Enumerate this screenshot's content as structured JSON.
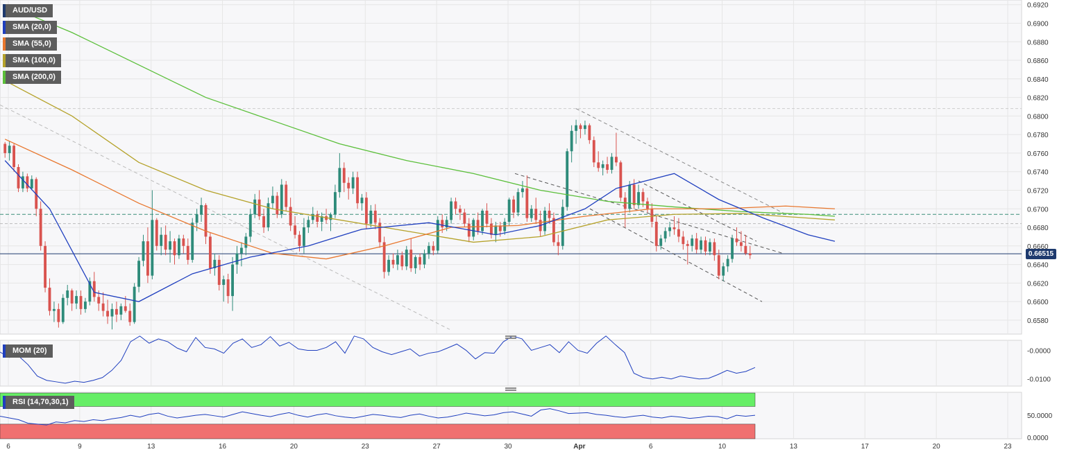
{
  "symbol": "AUD/USD",
  "indicators": [
    {
      "label": "SMA (20,0)",
      "color": "#1f3fbf"
    },
    {
      "label": "SMA (55,0)",
      "color": "#e8772e"
    },
    {
      "label": "SMA (100,0)",
      "color": "#b5a22a"
    },
    {
      "label": "SMA (200,0)",
      "color": "#5bbf3a"
    }
  ],
  "current_price": "0.66515",
  "mom_label": "MOM (20)",
  "rsi_label": "RSI (14,70,30,1)",
  "colors": {
    "up": "#2e8b7a",
    "down": "#d9534f",
    "accent": "#1e3a6e",
    "rsi_high": "#66ee66",
    "rsi_low": "#f07070"
  },
  "chart_data": {
    "type": "candlestick",
    "y_axis": {
      "min": 0.6565,
      "max": 0.6925,
      "ticks": [
        "0.6920",
        "0.6900",
        "0.6880",
        "0.6860",
        "0.6840",
        "0.6820",
        "0.6800",
        "0.6780",
        "0.6760",
        "0.6740",
        "0.6720",
        "0.6700",
        "0.6680",
        "0.6660",
        "0.6640",
        "0.6620",
        "0.6600",
        "0.6580"
      ]
    },
    "x_axis": {
      "labels": [
        "6",
        "9",
        "13",
        "16",
        "20",
        "23",
        "27",
        "30",
        "Apr",
        "6",
        "10",
        "13",
        "17",
        "20",
        "23"
      ]
    },
    "horizontal_levels": [
      0.6694,
      0.6684,
      0.6808
    ],
    "current_price": 0.66515,
    "candles": [
      [
        0.677,
        0.6772,
        0.6755,
        0.676
      ],
      [
        0.676,
        0.6773,
        0.6752,
        0.6768
      ],
      [
        0.6768,
        0.677,
        0.674,
        0.6745
      ],
      [
        0.6745,
        0.6748,
        0.6718,
        0.6722
      ],
      [
        0.6722,
        0.674,
        0.6718,
        0.6735
      ],
      [
        0.6735,
        0.6738,
        0.6718,
        0.6722
      ],
      [
        0.6722,
        0.6736,
        0.672,
        0.6732
      ],
      [
        0.6732,
        0.6734,
        0.6692,
        0.67
      ],
      [
        0.67,
        0.6708,
        0.6655,
        0.666
      ],
      [
        0.666,
        0.6665,
        0.661,
        0.6615
      ],
      [
        0.6615,
        0.6625,
        0.6585,
        0.659
      ],
      [
        0.659,
        0.66,
        0.6578,
        0.6592
      ],
      [
        0.6592,
        0.6598,
        0.6572,
        0.6578
      ],
      [
        0.6578,
        0.6608,
        0.6576,
        0.6604
      ],
      [
        0.6604,
        0.6618,
        0.6596,
        0.6612
      ],
      [
        0.6612,
        0.6614,
        0.659,
        0.6598
      ],
      [
        0.6598,
        0.6612,
        0.6592,
        0.6606
      ],
      [
        0.6606,
        0.6612,
        0.6586,
        0.6592
      ],
      [
        0.6592,
        0.6604,
        0.6588,
        0.66
      ],
      [
        0.66,
        0.6626,
        0.6596,
        0.6622
      ],
      [
        0.6622,
        0.6632,
        0.66,
        0.6605
      ],
      [
        0.6605,
        0.6612,
        0.659,
        0.6598
      ],
      [
        0.6598,
        0.661,
        0.6584,
        0.659
      ],
      [
        0.659,
        0.6602,
        0.6576,
        0.6584
      ],
      [
        0.6584,
        0.6598,
        0.657,
        0.6592
      ],
      [
        0.6592,
        0.66,
        0.6578,
        0.6586
      ],
      [
        0.6586,
        0.6598,
        0.658,
        0.6595
      ],
      [
        0.6595,
        0.6606,
        0.6588,
        0.659
      ],
      [
        0.659,
        0.6598,
        0.6574,
        0.6578
      ],
      [
        0.6578,
        0.662,
        0.6576,
        0.6616
      ],
      [
        0.6616,
        0.6648,
        0.661,
        0.6644
      ],
      [
        0.6644,
        0.6672,
        0.6638,
        0.6665
      ],
      [
        0.6665,
        0.668,
        0.662,
        0.6628
      ],
      [
        0.6628,
        0.672,
        0.6624,
        0.6688
      ],
      [
        0.6688,
        0.669,
        0.6655,
        0.666
      ],
      [
        0.666,
        0.668,
        0.665,
        0.6672
      ],
      [
        0.6672,
        0.6682,
        0.665,
        0.6656
      ],
      [
        0.6656,
        0.6676,
        0.6642,
        0.6665
      ],
      [
        0.6665,
        0.6668,
        0.664,
        0.665
      ],
      [
        0.665,
        0.6672,
        0.6646,
        0.6668
      ],
      [
        0.6668,
        0.6672,
        0.6652,
        0.666
      ],
      [
        0.666,
        0.6668,
        0.664,
        0.6645
      ],
      [
        0.6645,
        0.669,
        0.6642,
        0.6685
      ],
      [
        0.6685,
        0.67,
        0.6676,
        0.6694
      ],
      [
        0.6694,
        0.6712,
        0.6686,
        0.6704
      ],
      [
        0.6704,
        0.6706,
        0.6662,
        0.667
      ],
      [
        0.667,
        0.6674,
        0.663,
        0.6636
      ],
      [
        0.6636,
        0.6652,
        0.6628,
        0.6645
      ],
      [
        0.6645,
        0.665,
        0.6612,
        0.6618
      ],
      [
        0.6618,
        0.6628,
        0.66,
        0.6624
      ],
      [
        0.6624,
        0.663,
        0.6598,
        0.6606
      ],
      [
        0.6606,
        0.6648,
        0.659,
        0.664
      ],
      [
        0.664,
        0.666,
        0.663,
        0.6652
      ],
      [
        0.6652,
        0.6664,
        0.6638,
        0.6658
      ],
      [
        0.6658,
        0.6674,
        0.665,
        0.667
      ],
      [
        0.667,
        0.67,
        0.6664,
        0.6694
      ],
      [
        0.6694,
        0.6716,
        0.669,
        0.671
      ],
      [
        0.671,
        0.672,
        0.6688,
        0.6692
      ],
      [
        0.6692,
        0.67,
        0.6674,
        0.668
      ],
      [
        0.668,
        0.6712,
        0.6676,
        0.6706
      ],
      [
        0.6706,
        0.6724,
        0.67,
        0.6714
      ],
      [
        0.6714,
        0.6718,
        0.669,
        0.6694
      ],
      [
        0.6694,
        0.6732,
        0.669,
        0.6726
      ],
      [
        0.6726,
        0.673,
        0.6698,
        0.6702
      ],
      [
        0.6702,
        0.6712,
        0.6676,
        0.6682
      ],
      [
        0.6682,
        0.6692,
        0.6668,
        0.6672
      ],
      [
        0.6672,
        0.6676,
        0.6654,
        0.666
      ],
      [
        0.666,
        0.669,
        0.6652,
        0.668
      ],
      [
        0.668,
        0.6692,
        0.6674,
        0.6688
      ],
      [
        0.6688,
        0.6702,
        0.6684,
        0.6694
      ],
      [
        0.6694,
        0.6698,
        0.668,
        0.6686
      ],
      [
        0.6686,
        0.6696,
        0.6676,
        0.6692
      ],
      [
        0.6692,
        0.67,
        0.6684,
        0.6688
      ],
      [
        0.6688,
        0.6696,
        0.6676,
        0.6694
      ],
      [
        0.6694,
        0.6726,
        0.669,
        0.6718
      ],
      [
        0.6718,
        0.676,
        0.6712,
        0.6744
      ],
      [
        0.6744,
        0.675,
        0.6718,
        0.6728
      ],
      [
        0.6728,
        0.6734,
        0.671,
        0.6722
      ],
      [
        0.6722,
        0.674,
        0.6716,
        0.6734
      ],
      [
        0.6734,
        0.674,
        0.67,
        0.6706
      ],
      [
        0.6706,
        0.6716,
        0.6698,
        0.6712
      ],
      [
        0.6712,
        0.6718,
        0.6678,
        0.6684
      ],
      [
        0.6684,
        0.6704,
        0.668,
        0.6698
      ],
      [
        0.6698,
        0.6705,
        0.6678,
        0.6685
      ],
      [
        0.6685,
        0.669,
        0.6658,
        0.6664
      ],
      [
        0.6664,
        0.667,
        0.6625,
        0.6632
      ],
      [
        0.6632,
        0.665,
        0.6628,
        0.6645
      ],
      [
        0.6645,
        0.6652,
        0.6636,
        0.664
      ],
      [
        0.664,
        0.6656,
        0.6634,
        0.665
      ],
      [
        0.665,
        0.6654,
        0.6634,
        0.6638
      ],
      [
        0.6638,
        0.666,
        0.6634,
        0.6656
      ],
      [
        0.6656,
        0.6668,
        0.6632,
        0.6636
      ],
      [
        0.6636,
        0.665,
        0.663,
        0.6648
      ],
      [
        0.6648,
        0.6652,
        0.6634,
        0.664
      ],
      [
        0.664,
        0.6656,
        0.6636,
        0.6652
      ],
      [
        0.6652,
        0.6664,
        0.6646,
        0.666
      ],
      [
        0.666,
        0.6665,
        0.665,
        0.6655
      ],
      [
        0.6655,
        0.6692,
        0.6652,
        0.6688
      ],
      [
        0.6688,
        0.6694,
        0.6674,
        0.668
      ],
      [
        0.668,
        0.6692,
        0.6676,
        0.6688
      ],
      [
        0.6688,
        0.6712,
        0.6684,
        0.6708
      ],
      [
        0.6708,
        0.6712,
        0.6694,
        0.67
      ],
      [
        0.67,
        0.6704,
        0.6688,
        0.6696
      ],
      [
        0.6696,
        0.67,
        0.668,
        0.6684
      ],
      [
        0.6684,
        0.669,
        0.6664,
        0.667
      ],
      [
        0.667,
        0.669,
        0.6666,
        0.6688
      ],
      [
        0.6688,
        0.6696,
        0.6672,
        0.6676
      ],
      [
        0.6676,
        0.67,
        0.6672,
        0.6698
      ],
      [
        0.6698,
        0.6706,
        0.668,
        0.6684
      ],
      [
        0.6684,
        0.669,
        0.6668,
        0.6672
      ],
      [
        0.6672,
        0.6686,
        0.6664,
        0.6682
      ],
      [
        0.6682,
        0.6686,
        0.667,
        0.6676
      ],
      [
        0.6676,
        0.669,
        0.6672,
        0.6686
      ],
      [
        0.6686,
        0.6712,
        0.6682,
        0.671
      ],
      [
        0.671,
        0.6714,
        0.669,
        0.6696
      ],
      [
        0.6696,
        0.6722,
        0.6692,
        0.6718
      ],
      [
        0.6718,
        0.673,
        0.6712,
        0.6722
      ],
      [
        0.6722,
        0.6736,
        0.6686,
        0.669
      ],
      [
        0.669,
        0.6704,
        0.6686,
        0.67
      ],
      [
        0.67,
        0.6712,
        0.6684,
        0.6688
      ],
      [
        0.6688,
        0.6698,
        0.667,
        0.6676
      ],
      [
        0.6676,
        0.6702,
        0.6672,
        0.6698
      ],
      [
        0.6698,
        0.6706,
        0.6684,
        0.669
      ],
      [
        0.669,
        0.6696,
        0.666,
        0.6664
      ],
      [
        0.6664,
        0.6672,
        0.665,
        0.666
      ],
      [
        0.666,
        0.671,
        0.6656,
        0.6702
      ],
      [
        0.6702,
        0.6765,
        0.6698,
        0.6762
      ],
      [
        0.6762,
        0.679,
        0.675,
        0.6784
      ],
      [
        0.6784,
        0.6796,
        0.677,
        0.679
      ],
      [
        0.679,
        0.6792,
        0.6776,
        0.6786
      ],
      [
        0.6786,
        0.6795,
        0.678,
        0.679
      ],
      [
        0.679,
        0.6792,
        0.677,
        0.6774
      ],
      [
        0.6774,
        0.6778,
        0.6745,
        0.675
      ],
      [
        0.675,
        0.6762,
        0.674,
        0.6744
      ],
      [
        0.6744,
        0.6752,
        0.6736,
        0.6748
      ],
      [
        0.6748,
        0.6756,
        0.6738,
        0.6742
      ],
      [
        0.6742,
        0.676,
        0.6738,
        0.6756
      ],
      [
        0.6756,
        0.6782,
        0.6746,
        0.675
      ],
      [
        0.675,
        0.6752,
        0.6708,
        0.6712
      ],
      [
        0.6712,
        0.6718,
        0.668,
        0.67
      ],
      [
        0.67,
        0.673,
        0.6696,
        0.6726
      ],
      [
        0.6726,
        0.6732,
        0.67,
        0.6704
      ],
      [
        0.6704,
        0.6726,
        0.67,
        0.6718
      ],
      [
        0.6718,
        0.6722,
        0.6702,
        0.6708
      ],
      [
        0.6708,
        0.6712,
        0.6696,
        0.67
      ],
      [
        0.67,
        0.6706,
        0.668,
        0.6686
      ],
      [
        0.6686,
        0.6692,
        0.6654,
        0.666
      ],
      [
        0.666,
        0.6672,
        0.6656,
        0.6668
      ],
      [
        0.6668,
        0.668,
        0.6664,
        0.6676
      ],
      [
        0.6676,
        0.6686,
        0.667,
        0.668
      ],
      [
        0.668,
        0.6692,
        0.6672,
        0.6678
      ],
      [
        0.6678,
        0.669,
        0.6664,
        0.667
      ],
      [
        0.667,
        0.6676,
        0.6656,
        0.6662
      ],
      [
        0.6662,
        0.6666,
        0.664,
        0.666
      ],
      [
        0.666,
        0.6672,
        0.6654,
        0.6668
      ],
      [
        0.6668,
        0.6674,
        0.6652,
        0.6656
      ],
      [
        0.6656,
        0.667,
        0.6652,
        0.6666
      ],
      [
        0.6666,
        0.667,
        0.665,
        0.6654
      ],
      [
        0.6654,
        0.6668,
        0.665,
        0.6664
      ],
      [
        0.6664,
        0.6668,
        0.6644,
        0.665
      ],
      [
        0.665,
        0.6656,
        0.6624,
        0.6628
      ],
      [
        0.6628,
        0.6642,
        0.6622,
        0.6638
      ],
      [
        0.6638,
        0.665,
        0.6632,
        0.6646
      ],
      [
        0.6646,
        0.6672,
        0.6642,
        0.6668
      ],
      [
        0.6668,
        0.668,
        0.666,
        0.6664
      ],
      [
        0.6664,
        0.6676,
        0.6654,
        0.666
      ],
      [
        0.666,
        0.6672,
        0.665,
        0.6652
      ],
      [
        0.6652,
        0.666,
        0.6646,
        0.665
      ]
    ],
    "sma20": [
      [
        0,
        0.6752
      ],
      [
        10,
        0.67
      ],
      [
        20,
        0.661
      ],
      [
        30,
        0.66
      ],
      [
        42,
        0.663
      ],
      [
        55,
        0.6648
      ],
      [
        68,
        0.666
      ],
      [
        80,
        0.6678
      ],
      [
        95,
        0.6685
      ],
      [
        110,
        0.6672
      ],
      [
        120,
        0.6682
      ],
      [
        130,
        0.67
      ],
      [
        137,
        0.6722
      ],
      [
        150,
        0.6738
      ],
      [
        160,
        0.671
      ],
      [
        170,
        0.669
      ],
      [
        180,
        0.6672
      ],
      [
        186,
        0.6665
      ]
    ],
    "sma55": [
      [
        0,
        0.6775
      ],
      [
        15,
        0.6742
      ],
      [
        30,
        0.6706
      ],
      [
        45,
        0.6676
      ],
      [
        60,
        0.6652
      ],
      [
        72,
        0.6646
      ],
      [
        85,
        0.666
      ],
      [
        100,
        0.668
      ],
      [
        115,
        0.6682
      ],
      [
        130,
        0.6692
      ],
      [
        145,
        0.67
      ],
      [
        160,
        0.67
      ],
      [
        175,
        0.6703
      ],
      [
        186,
        0.67
      ]
    ],
    "sma100": [
      [
        0,
        0.6838
      ],
      [
        15,
        0.68
      ],
      [
        30,
        0.675
      ],
      [
        45,
        0.672
      ],
      [
        60,
        0.67
      ],
      [
        75,
        0.6688
      ],
      [
        90,
        0.6676
      ],
      [
        105,
        0.6664
      ],
      [
        120,
        0.667
      ],
      [
        135,
        0.6688
      ],
      [
        150,
        0.6694
      ],
      [
        165,
        0.6695
      ],
      [
        180,
        0.669
      ],
      [
        186,
        0.6688
      ]
    ],
    "sma200": [
      [
        0,
        0.692
      ],
      [
        15,
        0.689
      ],
      [
        30,
        0.6855
      ],
      [
        45,
        0.682
      ],
      [
        60,
        0.6795
      ],
      [
        75,
        0.677
      ],
      [
        90,
        0.6752
      ],
      [
        105,
        0.6738
      ],
      [
        120,
        0.672
      ],
      [
        135,
        0.6708
      ],
      [
        150,
        0.6702
      ],
      [
        165,
        0.6697
      ],
      [
        180,
        0.6694
      ],
      [
        186,
        0.6692
      ]
    ],
    "mom_axis": {
      "ticks": [
        "-0.0000",
        "-0.0100"
      ]
    },
    "rsi_axis": {
      "ticks": [
        "50.0000",
        "0.0000"
      ],
      "overbought": 70,
      "oversold": 30
    },
    "mom": [
      -0.0006,
      -0.0025,
      -0.002,
      -0.005,
      -0.009,
      -0.0105,
      -0.011,
      -0.0115,
      -0.0108,
      -0.0112,
      -0.0105,
      -0.0095,
      -0.007,
      -0.0035,
      0.003,
      0.005,
      0.0025,
      0.004,
      0.003,
      0.0008,
      -0.0005,
      0.0045,
      0.001,
      0.0005,
      -0.001,
      0.0025,
      0.004,
      0.001,
      0.002,
      0.0048,
      0.0015,
      0.0028,
      0.0005,
      0.0,
      0.0,
      0.001,
      0.003,
      -0.001,
      0.005,
      0.004,
      0.001,
      -0.0005,
      -0.0015,
      -0.0005,
      0.0005,
      -0.002,
      -0.001,
      -0.0005,
      0.0008,
      0.0022,
      0.0,
      -0.003,
      -0.0008,
      -0.001,
      0.003,
      0.005,
      0.004,
      0.0,
      0.001,
      0.002,
      -0.0008,
      0.003,
      0.0,
      -0.001,
      0.0025,
      0.005,
      0.002,
      -0.0008,
      -0.008,
      -0.0095,
      -0.01,
      -0.0094,
      -0.01,
      -0.009,
      -0.0095,
      -0.01,
      -0.0098,
      -0.0085,
      -0.007,
      -0.008,
      -0.0074,
      -0.006
    ],
    "rsi": [
      48,
      44,
      40,
      32,
      30,
      28,
      35,
      33,
      38,
      36,
      40,
      38,
      42,
      45,
      50,
      46,
      52,
      55,
      48,
      44,
      47,
      50,
      52,
      49,
      46,
      52,
      58,
      54,
      50,
      47,
      52,
      56,
      50,
      46,
      51,
      54,
      49,
      46,
      44,
      48,
      52,
      50,
      47,
      45,
      50,
      53,
      48,
      44,
      46,
      50,
      55,
      52,
      49,
      51,
      56,
      58,
      53,
      48,
      62,
      65,
      60,
      54,
      55,
      56,
      52,
      50,
      47,
      45,
      48,
      50,
      46,
      44,
      48,
      46,
      43,
      45,
      48,
      47,
      42,
      50,
      48,
      50
    ]
  }
}
